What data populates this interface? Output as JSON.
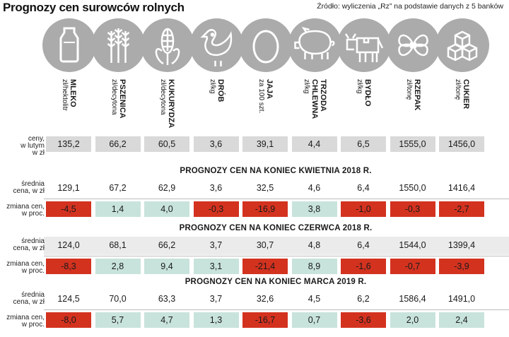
{
  "title": "Prognozy cen surowców rolnych",
  "source": "Źródło: wyliczenia „Rz” na podstawie danych z 5 banków",
  "labels": {
    "price_now": [
      "ceny,",
      "w lutym",
      "w zł"
    ],
    "avg_price": [
      "średnia",
      "cena, w zł"
    ],
    "change": [
      "zmiana cen,",
      "w proc."
    ]
  },
  "colors": {
    "neg": "#d3321f",
    "pos": "#c8e3dc",
    "neutral": "#d9d9d9",
    "circle": "#ababab"
  },
  "chart_data": {
    "type": "table",
    "columns": [
      {
        "name": "MLEKO",
        "unit": "zł/hektolitr",
        "icon": "milk-bottle-icon"
      },
      {
        "name": "PSZENICA",
        "unit": "zł/decytona",
        "icon": "wheat-icon"
      },
      {
        "name": "KUKURYDZA",
        "unit": "zł/decytona",
        "icon": "corn-icon"
      },
      {
        "name": "DRÓB",
        "unit": "zł/kg",
        "icon": "chicken-icon"
      },
      {
        "name": "JAJA",
        "unit": "za 100 szt.",
        "icon": "egg-icon"
      },
      {
        "name": "TRZODA CHLEWNA",
        "unit": "zł/kg",
        "icon": "pig-icon"
      },
      {
        "name": "BYDŁO",
        "unit": "zł/kg",
        "icon": "cow-icon"
      },
      {
        "name": "RZEPAK",
        "unit": "zł/tonę",
        "icon": "rapeseed-flower-icon"
      },
      {
        "name": "CUKIER",
        "unit": "zł/tonę",
        "icon": "sugar-cubes-icon"
      }
    ],
    "current_prices": [
      "135,2",
      "66,2",
      "60,5",
      "3,6",
      "39,1",
      "4,4",
      "6,5",
      "1555,0",
      "1456,0"
    ],
    "forecasts": [
      {
        "heading": "PROGNOZY CEN NA KONIEC KWIETNIA 2018 R.",
        "avg_price": [
          "129,1",
          "67,2",
          "62,9",
          "3,6",
          "32,5",
          "4,6",
          "6,4",
          "1550,0",
          "1416,4"
        ],
        "change_pct": [
          "-4,5",
          "1,4",
          "4,0",
          "-0,3",
          "-16,9",
          "3,8",
          "-1,0",
          "-0,3",
          "-2,7"
        ]
      },
      {
        "heading": "PROGNOZY CEN NA KONIEC CZERWCA 2018 R.",
        "avg_price": [
          "124,0",
          "68,1",
          "66,2",
          "3,7",
          "30,7",
          "4,8",
          "6,4",
          "1544,0",
          "1399,4"
        ],
        "change_pct": [
          "-8,3",
          "2,8",
          "9,4",
          "3,1",
          "-21,4",
          "8,9",
          "-1,6",
          "-0,7",
          "-3,9"
        ]
      },
      {
        "heading": "PROGNOZY CEN NA KONIEC MARCA 2019 R.",
        "avg_price": [
          "124,5",
          "70,0",
          "63,3",
          "3,7",
          "32,6",
          "4,5",
          "6,2",
          "1586,4",
          "1491,0"
        ],
        "change_pct": [
          "-8,0",
          "5,7",
          "4,7",
          "1,3",
          "-16,7",
          "0,7",
          "-3,6",
          "2,0",
          "2,4"
        ]
      }
    ]
  }
}
